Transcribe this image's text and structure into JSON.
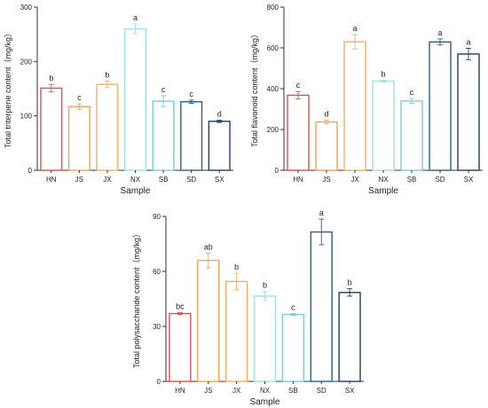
{
  "samples": [
    "HN",
    "JS",
    "JX",
    "NX",
    "SB",
    "SD",
    "SX"
  ],
  "colors": {
    "HN": "#e0524c",
    "JS": "#f2a05a",
    "JX": "#f2ad66",
    "NX": "#a6dde6",
    "SB": "#7fc9d8",
    "SD": "#2e5f86",
    "SX": "#1f3f5e",
    "axis": "#333333"
  },
  "chart_data": [
    {
      "type": "bar",
      "xlabel": "Sample",
      "ylabel": "Total triterpene content（mg/kg）",
      "ylim": [
        0,
        300
      ],
      "yticks": [
        0,
        100,
        200,
        300
      ],
      "categories": [
        "HN",
        "JS",
        "JX",
        "NX",
        "SB",
        "SD",
        "SX"
      ],
      "values": [
        151,
        117,
        158,
        260,
        127,
        126,
        90
      ],
      "errors": [
        7,
        5,
        6,
        9,
        10,
        3,
        2
      ],
      "letters": [
        "b",
        "c",
        "b",
        "a",
        "c",
        "c",
        "d"
      ]
    },
    {
      "type": "bar",
      "xlabel": "Sample",
      "ylabel": "Total flavonoid content（mg/kg）",
      "ylim": [
        0,
        800
      ],
      "yticks": [
        0,
        200,
        400,
        600,
        800
      ],
      "categories": [
        "HN",
        "JS",
        "JX",
        "NX",
        "SB",
        "SD",
        "SX"
      ],
      "values": [
        368,
        237,
        630,
        437,
        340,
        629,
        570
      ],
      "errors": [
        18,
        8,
        35,
        5,
        12,
        15,
        28
      ],
      "letters": [
        "c",
        "d",
        "a",
        "b",
        "c",
        "a",
        "a"
      ]
    },
    {
      "type": "bar",
      "xlabel": "Sample",
      "ylabel": "Total polysaccharide content（mg/kg）",
      "ylim": [
        0,
        90
      ],
      "yticks": [
        0,
        30,
        60,
        90
      ],
      "categories": [
        "HN",
        "JS",
        "JX",
        "NX",
        "SB",
        "SD",
        "SX"
      ],
      "values": [
        37,
        66,
        54.5,
        46.5,
        36.5,
        81.5,
        48.5
      ],
      "errors": [
        0.5,
        4,
        4.5,
        2.5,
        0.5,
        7,
        2
      ],
      "letters": [
        "bc",
        "ab",
        "b",
        "b",
        "c",
        "a",
        "b"
      ]
    }
  ]
}
